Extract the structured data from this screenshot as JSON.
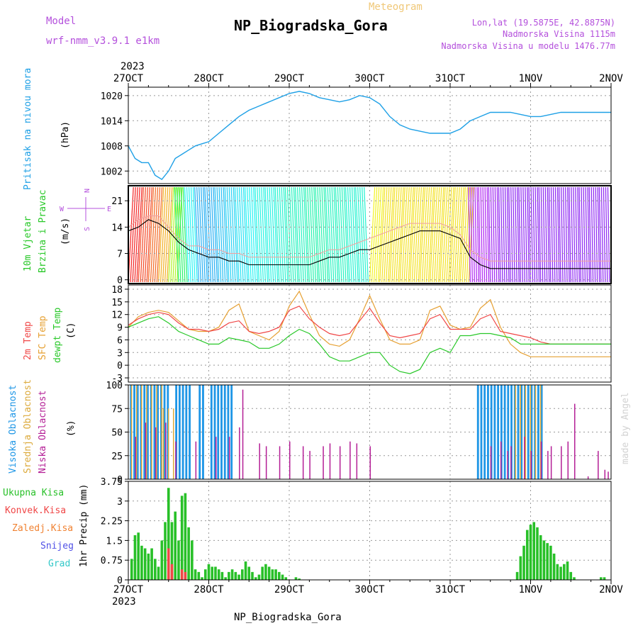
{
  "header": {
    "model_label": "Model",
    "model_name": "wrf-nmm_v3.9.1 e1km",
    "meteogram_label": "Meteogram",
    "station": "NP_Biogradska_Gora",
    "lonlat": "Lon,lat (19.5875E, 42.8875N)",
    "elevation": "Nadmorska Visina 1115m",
    "model_elevation": "Nadmorska Visina u modelu 1476.77m",
    "year_top": "2023",
    "year_bottom": "2023",
    "footer_station": "NP_Biogradska_Gora",
    "watermark": "made by Angel"
  },
  "colors": {
    "pressure": "#1ea0e6",
    "temp2m": "#f04646",
    "sfc_temp": "#e6a032",
    "dewpt": "#28c828",
    "high_cloud": "#1e96e6",
    "mid_cloud": "#dcaa3c",
    "low_cloud": "#b41e96",
    "precip_total": "#28c028",
    "precip_conv": "#f04646",
    "precip_frozen": "#f08232",
    "snow": "#5050e6",
    "hail": "#32c8c8",
    "magenta_label": "#b450dc"
  },
  "chart_data": [
    {
      "type": "line",
      "name": "pressure",
      "ylabel": "Pritisak na nivou mora",
      "unit": "(hPa)",
      "ylim": [
        999,
        1022
      ],
      "yticks": [
        1002,
        1008,
        1014,
        1020
      ],
      "x": [
        0,
        2,
        4,
        6,
        8,
        10,
        12,
        14,
        16,
        18,
        20,
        22,
        24,
        27,
        30,
        33,
        36,
        39,
        42,
        45,
        48,
        51,
        54,
        57,
        60,
        63,
        66,
        69,
        72,
        75,
        78,
        81,
        84,
        87,
        90,
        93,
        96,
        99,
        102,
        105,
        108,
        111,
        114,
        117,
        120,
        123,
        126,
        129,
        132,
        135,
        138,
        141,
        144
      ],
      "values": [
        1008,
        1005,
        1004,
        1004,
        1001,
        1000,
        1002,
        1005,
        1006,
        1007,
        1008,
        1008.5,
        1009,
        1011,
        1013,
        1015,
        1016.5,
        1017.5,
        1018.5,
        1019.5,
        1020.5,
        1021,
        1020.5,
        1019.5,
        1019,
        1018.5,
        1019,
        1020,
        1019.5,
        1018,
        1015,
        1013,
        1012,
        1011.5,
        1011,
        1011,
        1011,
        1012,
        1014,
        1015,
        1016,
        1016,
        1016,
        1015.5,
        1015,
        1015,
        1015.5,
        1016,
        1016,
        1016,
        1016,
        1016,
        1016
      ],
      "grid": true
    },
    {
      "type": "line",
      "name": "wind",
      "ylabel_1": "10m Vjetar",
      "ylabel_2": "Brzina i Pravac",
      "unit": "(m/s)",
      "ylim": [
        -1,
        25
      ],
      "yticks": [
        0,
        7,
        14,
        21
      ],
      "compass": [
        "W",
        "E",
        "N",
        "S"
      ],
      "x": [
        0,
        3,
        6,
        9,
        12,
        15,
        18,
        21,
        24,
        27,
        30,
        33,
        36,
        39,
        42,
        45,
        48,
        51,
        54,
        57,
        60,
        63,
        66,
        69,
        72,
        75,
        78,
        81,
        84,
        87,
        90,
        93,
        96,
        99,
        102,
        105,
        108,
        111,
        114,
        117,
        120,
        123,
        126,
        129,
        132,
        135,
        138,
        141,
        144
      ],
      "speed": [
        13,
        14,
        16,
        15,
        13,
        10,
        8,
        7,
        6,
        6,
        5,
        5,
        4,
        4,
        4,
        4,
        4,
        4,
        4,
        5,
        6,
        6,
        7,
        8,
        8,
        9,
        10,
        11,
        12,
        13,
        13,
        13,
        12,
        11,
        6,
        4,
        3,
        3,
        3,
        3,
        3,
        3,
        3,
        3,
        3,
        3,
        3,
        3,
        3
      ],
      "gust": [
        14,
        16,
        17,
        17,
        14,
        11,
        9,
        9,
        8,
        8,
        7,
        7,
        6,
        6,
        6,
        6,
        6,
        6,
        6,
        7,
        8,
        8,
        9,
        10,
        11,
        12,
        13,
        14,
        15,
        15,
        15,
        15,
        14,
        12,
        8,
        6,
        5,
        5,
        5,
        5,
        5,
        5,
        5,
        5,
        5,
        5,
        5,
        5,
        5
      ],
      "direction_hue": [
        0,
        10,
        20,
        40,
        80,
        140,
        180,
        200,
        200,
        195,
        190,
        185,
        180,
        175,
        175,
        170,
        165,
        165,
        160,
        160,
        165,
        165,
        170,
        170,
        60,
        55,
        55,
        55,
        55,
        55,
        55,
        55,
        55,
        55,
        280,
        280,
        275,
        270,
        270,
        270,
        270,
        270,
        270,
        270,
        270,
        270,
        270,
        270,
        270
      ],
      "grid": true
    },
    {
      "type": "line",
      "name": "temperature",
      "label_2m": "2m Temp",
      "label_sfc": "SFC Temp",
      "label_dewpt": "dewpt Temp",
      "unit": "(C)",
      "ylim": [
        -4,
        19
      ],
      "yticks": [
        -3,
        0,
        3,
        6,
        9,
        12,
        15,
        18
      ],
      "x": [
        0,
        3,
        6,
        9,
        12,
        15,
        18,
        21,
        24,
        27,
        30,
        33,
        36,
        39,
        42,
        45,
        48,
        51,
        54,
        57,
        60,
        63,
        66,
        69,
        72,
        75,
        78,
        81,
        84,
        87,
        90,
        93,
        96,
        99,
        102,
        105,
        108,
        111,
        114,
        117,
        120,
        123,
        126,
        129,
        132,
        135,
        138,
        141,
        144
      ],
      "series": [
        {
          "name": "2m",
          "values": [
            9.5,
            11,
            12,
            12.5,
            12,
            10,
            8.5,
            8.5,
            8,
            8.5,
            10,
            10.5,
            8,
            7.5,
            8,
            9,
            13,
            14,
            11,
            9,
            7.5,
            7,
            7.5,
            10.5,
            13.5,
            10,
            7,
            6.5,
            7,
            7.5,
            11,
            12,
            8.5,
            8.5,
            8.5,
            11,
            12,
            8,
            7.5,
            7,
            6.5,
            5.5,
            5,
            5,
            5,
            5,
            5,
            5,
            5
          ]
        },
        {
          "name": "sfc",
          "values": [
            9,
            11.5,
            12.5,
            13,
            12.5,
            10.5,
            8.5,
            8,
            8,
            9,
            13,
            14.5,
            8,
            7,
            6,
            8,
            14,
            17.5,
            12,
            7,
            5,
            4.5,
            6,
            11,
            16.5,
            11,
            6,
            5,
            5,
            6,
            13,
            14,
            9.5,
            8.5,
            9,
            13.5,
            15.5,
            9,
            5,
            3,
            2,
            2,
            2,
            2,
            2,
            2,
            2,
            2,
            2
          ]
        },
        {
          "name": "dewpt",
          "values": [
            9,
            10,
            11,
            11.5,
            10,
            8,
            7,
            6,
            5,
            5,
            6.5,
            6,
            5.5,
            4,
            4,
            5,
            7,
            8.5,
            7.5,
            5,
            2,
            1,
            1,
            2,
            3,
            3,
            0,
            -1.5,
            -2,
            -1,
            3,
            4,
            3,
            7,
            7,
            7.5,
            7.5,
            7,
            6.5,
            5,
            5,
            5,
            5,
            5,
            5,
            5,
            5,
            5,
            5
          ]
        }
      ],
      "grid": true
    },
    {
      "type": "bar",
      "name": "clouds",
      "labels": [
        "Visoka Oblacnost",
        "Srednja Oblacnost",
        "Niska Oblacnost"
      ],
      "unit": "(%)",
      "ylim": [
        0,
        100
      ],
      "yticks": [
        0,
        25,
        50,
        75,
        100
      ],
      "series": [
        {
          "name": "high",
          "segments": [
            [
              0.5,
              12,
              100
            ],
            [
              14,
              19,
              100
            ],
            [
              21,
              23,
              100
            ],
            [
              24.5,
              31,
              100
            ],
            [
              104,
              124,
              100
            ]
          ]
        },
        {
          "name": "mid",
          "segments": [
            [
              0.5,
              10,
              100
            ],
            [
              10,
              14,
              75
            ],
            [
              115,
              124,
              100
            ]
          ]
        },
        {
          "name": "low",
          "bars": [
            [
              2,
              45
            ],
            [
              5,
              60
            ],
            [
              8,
              55
            ],
            [
              11,
              60
            ],
            [
              14,
              40
            ],
            [
              20,
              40
            ],
            [
              26,
              45
            ],
            [
              30,
              45
            ],
            [
              33,
              55
            ],
            [
              34,
              95
            ],
            [
              39,
              38
            ],
            [
              41,
              35
            ],
            [
              45,
              35
            ],
            [
              48,
              40
            ],
            [
              52,
              35
            ],
            [
              54,
              30
            ],
            [
              58,
              35
            ],
            [
              60,
              38
            ],
            [
              63,
              35
            ],
            [
              66,
              40
            ],
            [
              68,
              38
            ],
            [
              72,
              35
            ],
            [
              108,
              35
            ],
            [
              111,
              40
            ],
            [
              113,
              30
            ],
            [
              114,
              35
            ],
            [
              118,
              45
            ],
            [
              120,
              30
            ],
            [
              123,
              40
            ],
            [
              125,
              30
            ],
            [
              126,
              35
            ],
            [
              129,
              35
            ],
            [
              131,
              40
            ],
            [
              133,
              80
            ],
            [
              137,
              3
            ],
            [
              140,
              30
            ],
            [
              142,
              10
            ],
            [
              143,
              8
            ]
          ]
        }
      ],
      "grid": true
    },
    {
      "type": "bar",
      "name": "precipitation",
      "labels": [
        "Ukupna Kisa",
        "Konvek.Kisa",
        "Zaledj.Kisa",
        "Snijeg",
        "Grad"
      ],
      "unit": "1hr Precip (mm)",
      "ylim": [
        0,
        3.75
      ],
      "yticks": [
        0,
        0.75,
        1.5,
        2.25,
        3,
        3.75
      ],
      "x": [
        1,
        2,
        3,
        4,
        5,
        6,
        7,
        8,
        9,
        10,
        11,
        12,
        13,
        14,
        15,
        16,
        17,
        18,
        19,
        20,
        21,
        22,
        23,
        24,
        25,
        26,
        27,
        28,
        29,
        30,
        31,
        32,
        33,
        34,
        35,
        36,
        37,
        38,
        39,
        40,
        41,
        42,
        43,
        44,
        45,
        46,
        47,
        48,
        49,
        50,
        51,
        52,
        53,
        54,
        55,
        56,
        57,
        58,
        59,
        60,
        61,
        62,
        63,
        64,
        65,
        66,
        67,
        68,
        69,
        70,
        71,
        72,
        73,
        74,
        75,
        76,
        77,
        78,
        79,
        80,
        81,
        82,
        83,
        84,
        85,
        86,
        87,
        88,
        89,
        90,
        91,
        92,
        93,
        94,
        95,
        96,
        97,
        98,
        99,
        100,
        101,
        102,
        103,
        104,
        105,
        106,
        107,
        108,
        109,
        110,
        111,
        112,
        113,
        114,
        115,
        116,
        117,
        118,
        119,
        120,
        121,
        122,
        123,
        124,
        125,
        126,
        127,
        128,
        129,
        130,
        131,
        132,
        133,
        134,
        135,
        136,
        137,
        138,
        139,
        140,
        141,
        142,
        143
      ],
      "total": [
        0.8,
        1.7,
        1.8,
        1.3,
        1.2,
        1.0,
        1.2,
        0.8,
        0.5,
        1.5,
        2.2,
        3.5,
        2.2,
        2.6,
        1.5,
        3.2,
        3.3,
        2.0,
        1.5,
        0.4,
        0.3,
        0.1,
        0.4,
        0.6,
        0.5,
        0.5,
        0.4,
        0.3,
        0.1,
        0.3,
        0.4,
        0.3,
        0.2,
        0.4,
        0.7,
        0.5,
        0.3,
        0.1,
        0.2,
        0.5,
        0.6,
        0.5,
        0.4,
        0.4,
        0.3,
        0.2,
        0.1,
        0,
        0,
        0.1,
        0.05,
        0,
        0,
        0,
        0,
        0,
        0,
        0,
        0,
        0,
        0,
        0,
        0,
        0,
        0,
        0,
        0,
        0,
        0,
        0,
        0,
        0,
        0,
        0,
        0,
        0,
        0,
        0,
        0,
        0,
        0,
        0,
        0,
        0,
        0,
        0,
        0,
        0,
        0,
        0,
        0,
        0,
        0,
        0,
        0,
        0,
        0,
        0,
        0,
        0,
        0,
        0,
        0,
        0,
        0,
        0,
        0,
        0,
        0,
        0,
        0,
        0,
        0,
        0,
        0,
        0.3,
        0.9,
        1.3,
        1.9,
        2.1,
        2.2,
        2.0,
        1.7,
        1.5,
        1.4,
        1.3,
        1.0,
        0.6,
        0.5,
        0.6,
        0.7,
        0.3,
        0.1,
        0,
        0,
        0,
        0,
        0,
        0,
        0,
        0.1,
        0.1,
        0
      ],
      "convective": {
        "12": 1.2,
        "13": 0.6,
        "16": 0.4,
        "17": 0.3
      },
      "grid": true
    }
  ],
  "axis": {
    "top_labels": [
      "27OCT",
      "28OCT",
      "29OCT",
      "30OCT",
      "31OCT",
      "1NOV",
      "2NOV"
    ],
    "bottom_labels": [
      "27OCT",
      "28OCT",
      "29OCT",
      "30OCT",
      "31OCT",
      "1NOV",
      "2NOV"
    ],
    "hours_total": 144
  }
}
